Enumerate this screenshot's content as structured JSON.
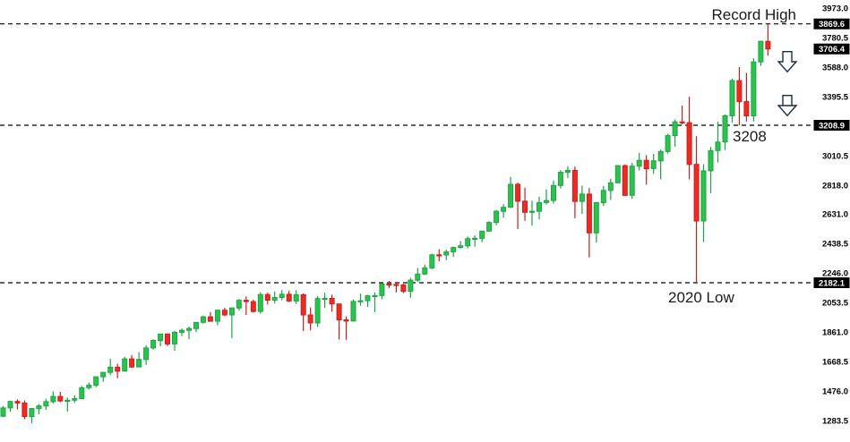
{
  "annotations": {
    "record_high": "Record High",
    "level_3208": "3208",
    "low_2020": "2020 Low"
  },
  "colors": {
    "up_fill": "#2dc24e",
    "up_border": "#1ca344",
    "down_fill": "#ec2c24",
    "down_border": "#c91f1c",
    "dashed_line": "#000000",
    "tick_text": "#000000",
    "price_box_bg": "#000000",
    "price_box_text": "#ffffff",
    "annotation_text": "#1a1a1a",
    "arrow_outline": "#1c2b4a"
  },
  "chart_data": {
    "type": "candlestick",
    "title": "",
    "xlabel": "",
    "ylabel": "",
    "x_labels_visible": false,
    "grid": false,
    "ylim": [
      1283.5,
      3973.0
    ],
    "y_ticks": [
      3973.0,
      3780.5,
      3588.0,
      3395.5,
      3010.5,
      2818.0,
      2631.0,
      2438.5,
      2246.0,
      2053.5,
      1861.0,
      1668.5,
      1476.0,
      1283.5
    ],
    "levels": [
      {
        "label": "3869.6",
        "value": 3869.6,
        "dashed": true
      },
      {
        "label": "3706.4",
        "value": 3706.4,
        "dashed": false
      },
      {
        "label": "3208.9",
        "value": 3208.9,
        "dashed": true
      },
      {
        "label": "2182.1",
        "value": 2182.1,
        "dashed": true
      }
    ],
    "candles": [
      [
        1312,
        1378,
        1306,
        1366
      ],
      [
        1366,
        1414,
        1340,
        1408
      ],
      [
        1408,
        1422,
        1357,
        1398
      ],
      [
        1398,
        1415,
        1292,
        1310
      ],
      [
        1310,
        1363,
        1267,
        1362
      ],
      [
        1362,
        1391,
        1325,
        1379
      ],
      [
        1379,
        1426,
        1354,
        1407
      ],
      [
        1407,
        1474,
        1396,
        1441
      ],
      [
        1441,
        1471,
        1403,
        1412
      ],
      [
        1412,
        1434,
        1343,
        1416
      ],
      [
        1416,
        1448,
        1398,
        1426
      ],
      [
        1426,
        1509,
        1426,
        1498
      ],
      [
        1498,
        1531,
        1485,
        1515
      ],
      [
        1515,
        1570,
        1501,
        1569
      ],
      [
        1569,
        1598,
        1536,
        1598
      ],
      [
        1598,
        1687,
        1581,
        1631
      ],
      [
        1631,
        1654,
        1560,
        1606
      ],
      [
        1606,
        1699,
        1604,
        1686
      ],
      [
        1686,
        1710,
        1628,
        1633
      ],
      [
        1633,
        1730,
        1633,
        1682
      ],
      [
        1682,
        1775,
        1646,
        1757
      ],
      [
        1757,
        1813,
        1746,
        1806
      ],
      [
        1806,
        1849,
        1768,
        1848
      ],
      [
        1848,
        1851,
        1770,
        1783
      ],
      [
        1783,
        1868,
        1738,
        1859
      ],
      [
        1859,
        1884,
        1834,
        1872
      ],
      [
        1872,
        1897,
        1814,
        1884
      ],
      [
        1884,
        1924,
        1860,
        1924
      ],
      [
        1924,
        1968,
        1916,
        1960
      ],
      [
        1960,
        1991,
        1930,
        1931
      ],
      [
        1931,
        2005,
        1905,
        2003
      ],
      [
        2003,
        2019,
        1964,
        1972
      ],
      [
        1972,
        2018,
        1821,
        2018
      ],
      [
        2018,
        2076,
        2001,
        2068
      ],
      [
        2068,
        2093,
        1972,
        2059
      ],
      [
        2059,
        2072,
        1988,
        1995
      ],
      [
        1995,
        2120,
        1981,
        2105
      ],
      [
        2105,
        2117,
        2040,
        2068
      ],
      [
        2068,
        2126,
        2048,
        2086
      ],
      [
        2086,
        2135,
        2068,
        2107
      ],
      [
        2107,
        2130,
        2056,
        2063
      ],
      [
        2063,
        2133,
        2044,
        2104
      ],
      [
        2104,
        2113,
        1867,
        1972
      ],
      [
        1972,
        2021,
        1872,
        1920
      ],
      [
        1920,
        2095,
        1894,
        2079
      ],
      [
        2079,
        2116,
        2019,
        2080
      ],
      [
        2080,
        2104,
        1993,
        2044
      ],
      [
        2044,
        2044,
        1812,
        1940
      ],
      [
        1940,
        1963,
        1810,
        1932
      ],
      [
        1932,
        2072,
        1931,
        2060
      ],
      [
        2060,
        2111,
        2033,
        2065
      ],
      [
        2065,
        2103,
        2025,
        2097
      ],
      [
        2097,
        2120,
        1991,
        2099
      ],
      [
        2099,
        2177,
        2074,
        2174
      ],
      [
        2174,
        2194,
        2147,
        2171
      ],
      [
        2171,
        2187,
        2119,
        2168
      ],
      [
        2168,
        2175,
        2114,
        2126
      ],
      [
        2126,
        2214,
        2084,
        2199
      ],
      [
        2199,
        2278,
        2187,
        2239
      ],
      [
        2239,
        2301,
        2234,
        2279
      ],
      [
        2279,
        2372,
        2271,
        2364
      ],
      [
        2364,
        2401,
        2322,
        2363
      ],
      [
        2363,
        2399,
        2329,
        2384
      ],
      [
        2384,
        2418,
        2352,
        2412
      ],
      [
        2412,
        2454,
        2405,
        2423
      ],
      [
        2423,
        2484,
        2407,
        2470
      ],
      [
        2470,
        2491,
        2417,
        2472
      ],
      [
        2472,
        2519,
        2446,
        2519
      ],
      [
        2519,
        2583,
        2516,
        2575
      ],
      [
        2575,
        2657,
        2557,
        2648
      ],
      [
        2648,
        2695,
        2606,
        2674
      ],
      [
        2674,
        2873,
        2674,
        2824
      ],
      [
        2824,
        2835,
        2533,
        2714
      ],
      [
        2714,
        2802,
        2586,
        2641
      ],
      [
        2641,
        2717,
        2554,
        2648
      ],
      [
        2648,
        2742,
        2595,
        2705
      ],
      [
        2705,
        2791,
        2692,
        2718
      ],
      [
        2718,
        2848,
        2699,
        2816
      ],
      [
        2816,
        2916,
        2796,
        2902
      ],
      [
        2902,
        2941,
        2865,
        2914
      ],
      [
        2914,
        2940,
        2603,
        2712
      ],
      [
        2712,
        2815,
        2631,
        2760
      ],
      [
        2760,
        2800,
        2347,
        2507
      ],
      [
        2507,
        2709,
        2444,
        2704
      ],
      [
        2704,
        2814,
        2682,
        2784
      ],
      [
        2784,
        2861,
        2722,
        2834
      ],
      [
        2834,
        2949,
        2834,
        2946
      ],
      [
        2946,
        2954,
        2751,
        2752
      ],
      [
        2752,
        2964,
        2729,
        2942
      ],
      [
        2942,
        3028,
        2914,
        2980
      ],
      [
        2980,
        3014,
        2822,
        2926
      ],
      [
        2926,
        3022,
        2892,
        2977
      ],
      [
        2977,
        3050,
        2856,
        3038
      ],
      [
        3038,
        3154,
        3024,
        3141
      ],
      [
        3141,
        3248,
        3070,
        3231
      ],
      [
        3231,
        3338,
        3215,
        3226
      ],
      [
        3226,
        3394,
        2856,
        2954
      ],
      [
        2954,
        3137,
        2182.1,
        2585
      ],
      [
        2585,
        2955,
        2448,
        2912
      ],
      [
        2912,
        3068,
        2766,
        3044
      ],
      [
        3044,
        3233,
        2966,
        3100
      ],
      [
        3100,
        3280,
        3047,
        3271
      ],
      [
        3271,
        3514,
        3225,
        3500
      ],
      [
        3500,
        3588,
        3208.9,
        3363
      ],
      [
        3363,
        3550,
        3234,
        3270
      ],
      [
        3270,
        3646,
        3234,
        3622
      ],
      [
        3622,
        3760,
        3596,
        3756
      ],
      [
        3756,
        3869.6,
        3663,
        3706.4
      ]
    ]
  }
}
